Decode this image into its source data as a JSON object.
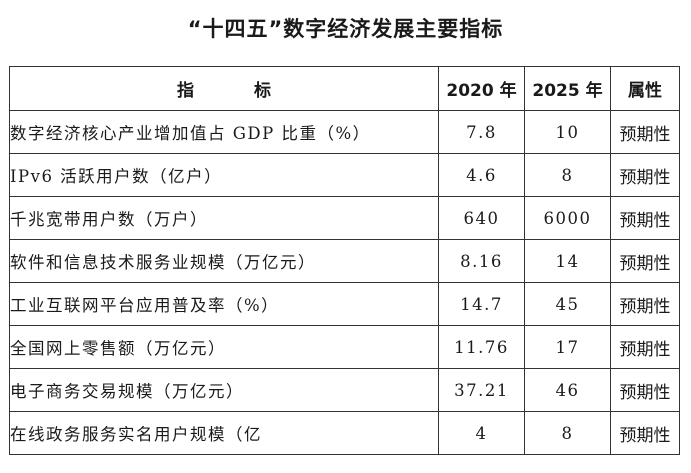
{
  "title": "“十四五”数字经济发展主要指标",
  "table": {
    "headers": {
      "name": "指标",
      "y2020": "2020 年",
      "y2025": "2025 年",
      "attr": "属性"
    },
    "rows": [
      {
        "name": "数字经济核心产业增加值占 GDP 比重（%）",
        "y2020": "7.8",
        "y2025": "10",
        "attr": "预期性"
      },
      {
        "name": "IPv6 活跃用户数（亿户）",
        "y2020": "4.6",
        "y2025": "8",
        "attr": "预期性"
      },
      {
        "name": "千兆宽带用户数（万户）",
        "y2020": "640",
        "y2025": "6000",
        "attr": "预期性"
      },
      {
        "name": "软件和信息技术服务业规模（万亿元）",
        "y2020": "8.16",
        "y2025": "14",
        "attr": "预期性"
      },
      {
        "name": "工业互联网平台应用普及率（%）",
        "y2020": "14.7",
        "y2025": "45",
        "attr": "预期性"
      },
      {
        "name": "全国网上零售额（万亿元）",
        "y2020": "11.76",
        "y2025": "17",
        "attr": "预期性"
      },
      {
        "name": "电子商务交易规模（万亿元）",
        "y2020": "37.21",
        "y2025": "46",
        "attr": "预期性"
      },
      {
        "name": "在线政务服务实名用户规模（亿",
        "y2020": "4",
        "y2025": "8",
        "attr": "预期性"
      }
    ]
  }
}
